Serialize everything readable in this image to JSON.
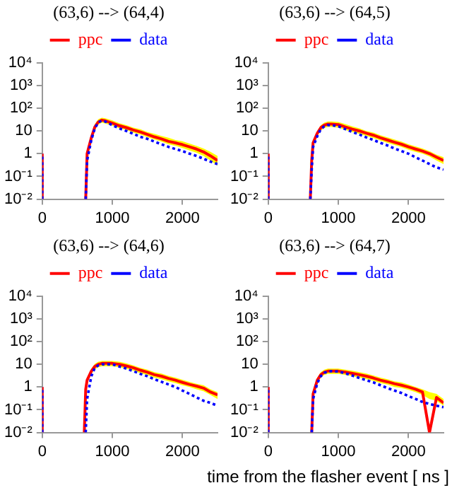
{
  "chart_data": [
    {
      "type": "line",
      "title": "(63,6) --> (64,4)",
      "legend": "top",
      "log": "y",
      "grid": false,
      "marker": "none",
      "x": [
        0,
        0,
        10,
        600,
        620,
        640,
        700,
        750,
        800,
        850,
        900,
        1000,
        1100,
        1200,
        1300,
        1400,
        1500,
        1600,
        1700,
        1800,
        1900,
        2000,
        2100,
        2200,
        2300,
        2400,
        2500
      ],
      "xlim": [
        0,
        2500
      ],
      "xticks": [
        0,
        1000,
        2000
      ],
      "ylim": [
        0.01,
        10000
      ],
      "yticks": [
        {
          "value": 0.01,
          "label": "10⁻²"
        },
        {
          "value": 0.1,
          "label": "10⁻¹"
        },
        {
          "value": 1,
          "label": "1"
        },
        {
          "value": 10,
          "label": "10"
        },
        {
          "value": 100,
          "label": "10²"
        },
        {
          "value": 1000,
          "label": "10³"
        },
        {
          "value": 10000,
          "label": "10⁴"
        }
      ],
      "series": [
        {
          "name": "ppc",
          "color": "#ff0000",
          "line_style": "solid",
          "values": [
            0.01,
            1,
            null,
            null,
            0.01,
            1,
            5,
            15,
            25,
            30,
            28,
            22,
            17,
            14,
            11,
            9,
            7,
            5.5,
            4.5,
            3.5,
            3,
            2.5,
            2,
            1.6,
            1.2,
            0.8,
            0.5
          ],
          "upper": [
            null,
            null,
            null,
            null,
            null,
            1.5,
            7,
            20,
            33,
            38,
            36,
            29,
            22,
            18,
            14,
            12,
            9,
            7.5,
            6,
            5,
            4,
            3.5,
            2.8,
            2.2,
            1.7,
            1.2,
            0.8
          ],
          "lower": [
            null,
            null,
            null,
            null,
            null,
            0.6,
            3.5,
            11,
            19,
            23,
            21,
            17,
            13,
            11,
            8.5,
            7,
            5.3,
            4.2,
            3.4,
            2.6,
            2.2,
            1.8,
            1.4,
            1.1,
            0.8,
            0.5,
            0.3
          ]
        },
        {
          "name": "data",
          "color": "#0000ff",
          "line_style": "dotted",
          "values": [
            0.01,
            1,
            null,
            null,
            0.01,
            0.5,
            4,
            13,
            24,
            28,
            26,
            18,
            13,
            10,
            7.5,
            5.5,
            4.5,
            3.4,
            2.6,
            2,
            1.6,
            1.3,
            1,
            0.8,
            0.6,
            0.45,
            0.35
          ]
        }
      ]
    },
    {
      "type": "line",
      "title": "(63,6) --> (64,5)",
      "legend": "top",
      "log": "y",
      "grid": false,
      "marker": "none",
      "x": [
        0,
        0,
        10,
        600,
        620,
        640,
        700,
        750,
        800,
        850,
        900,
        1000,
        1100,
        1200,
        1300,
        1400,
        1500,
        1600,
        1700,
        1800,
        1900,
        2000,
        2100,
        2200,
        2300,
        2400,
        2500
      ],
      "xlim": [
        0,
        2500
      ],
      "xticks": [
        0,
        1000,
        2000
      ],
      "ylim": [
        0.01,
        10000
      ],
      "yticks": [
        {
          "value": 0.01,
          "label": "10⁻²"
        },
        {
          "value": 0.1,
          "label": "10⁻¹"
        },
        {
          "value": 1,
          "label": "1"
        },
        {
          "value": 10,
          "label": "10"
        },
        {
          "value": 100,
          "label": "10²"
        },
        {
          "value": 1000,
          "label": "10³"
        },
        {
          "value": 10000,
          "label": "10⁴"
        }
      ],
      "series": [
        {
          "name": "ppc",
          "color": "#ff0000",
          "line_style": "solid",
          "values": [
            0.01,
            1,
            null,
            0.01,
            0.5,
            3,
            8,
            14,
            18,
            20,
            20,
            19,
            15,
            12,
            10,
            8,
            6.5,
            5,
            4,
            3.2,
            2.6,
            2,
            1.6,
            1.3,
            1,
            0.7,
            0.5
          ],
          "upper": [
            null,
            null,
            null,
            null,
            0.7,
            4,
            10,
            18,
            23,
            26,
            26,
            25,
            20,
            16,
            13,
            10,
            8.5,
            6.5,
            5.2,
            4.2,
            3.4,
            2.6,
            2.1,
            1.7,
            1.3,
            0.9,
            0.7
          ],
          "lower": [
            null,
            null,
            null,
            null,
            0.3,
            2.2,
            6,
            10.5,
            13.5,
            15,
            15,
            14,
            11,
            9,
            7.5,
            6,
            4.9,
            3.8,
            3,
            2.4,
            2,
            1.5,
            1.2,
            1,
            0.75,
            0.5,
            0.35
          ]
        },
        {
          "name": "data",
          "color": "#0000ff",
          "line_style": "dotted",
          "values": [
            0.01,
            1,
            null,
            0.01,
            0.2,
            2,
            6,
            12,
            16,
            18,
            18,
            16,
            12,
            9,
            7,
            5.2,
            4,
            3,
            2.3,
            1.7,
            1.3,
            1,
            0.7,
            0.5,
            0.35,
            0.25,
            0.2
          ]
        }
      ]
    },
    {
      "type": "line",
      "title": "(63,6) --> (64,6)",
      "legend": "top",
      "log": "y",
      "grid": false,
      "marker": "none",
      "x": [
        0,
        0,
        10,
        600,
        620,
        640,
        700,
        750,
        800,
        850,
        900,
        1000,
        1100,
        1200,
        1300,
        1400,
        1500,
        1600,
        1700,
        1800,
        1900,
        2000,
        2100,
        2200,
        2300,
        2400,
        2500
      ],
      "xlim": [
        0,
        2500
      ],
      "xticks": [
        0,
        1000,
        2000
      ],
      "ylim": [
        0.01,
        10000
      ],
      "yticks": [
        {
          "value": 0.01,
          "label": "10⁻²"
        },
        {
          "value": 0.1,
          "label": "10⁻¹"
        },
        {
          "value": 1,
          "label": "1"
        },
        {
          "value": 10,
          "label": "10"
        },
        {
          "value": 100,
          "label": "10²"
        },
        {
          "value": 1000,
          "label": "10³"
        },
        {
          "value": 10000,
          "label": "10⁴"
        }
      ],
      "series": [
        {
          "name": "ppc",
          "color": "#ff0000",
          "line_style": "solid",
          "values": [
            0.01,
            1,
            null,
            0.01,
            0.8,
            2,
            5,
            8,
            10,
            11,
            11,
            11,
            10,
            8.5,
            7,
            5.5,
            4.5,
            3.5,
            3,
            2.4,
            2,
            1.6,
            1.3,
            1.1,
            0.9,
            0.6,
            0.45
          ],
          "upper": [
            null,
            null,
            null,
            null,
            1,
            2.6,
            6.5,
            10.5,
            13,
            14,
            14,
            14,
            13,
            11,
            9,
            7,
            5.8,
            4.5,
            3.9,
            3.1,
            2.6,
            2.1,
            1.7,
            1.4,
            1.2,
            0.8,
            0.6
          ],
          "lower": [
            null,
            null,
            null,
            null,
            0.6,
            1.5,
            3.8,
            6,
            7.5,
            8.2,
            8.2,
            8.2,
            7.5,
            6.4,
            5.2,
            4.1,
            3.4,
            2.6,
            2.2,
            1.8,
            1.5,
            1.2,
            1,
            0.8,
            0.65,
            0.45,
            0.3
          ]
        },
        {
          "name": "data",
          "color": "#0000ff",
          "line_style": "dotted",
          "values": [
            0.01,
            1,
            null,
            null,
            0.01,
            0.3,
            3,
            7,
            9,
            10,
            10,
            10,
            8,
            6.5,
            5,
            3.8,
            3,
            2.2,
            1.7,
            1.3,
            1,
            0.7,
            0.5,
            0.35,
            0.25,
            0.2,
            0.15
          ]
        }
      ]
    },
    {
      "type": "line",
      "title": "(63,6) --> (64,7)",
      "xlabel": "time from the flasher event [ ns ]",
      "legend": "top",
      "log": "y",
      "grid": false,
      "marker": "none",
      "x": [
        0,
        0,
        10,
        600,
        620,
        640,
        700,
        750,
        800,
        850,
        900,
        1000,
        1100,
        1200,
        1300,
        1400,
        1500,
        1600,
        1700,
        1800,
        1900,
        2000,
        2100,
        2200,
        2300,
        2400,
        2500
      ],
      "xlim": [
        0,
        2500
      ],
      "xticks": [
        0,
        1000,
        2000
      ],
      "ylim": [
        0.01,
        10000
      ],
      "yticks": [
        {
          "value": 0.01,
          "label": "10⁻²"
        },
        {
          "value": 0.1,
          "label": "10⁻¹"
        },
        {
          "value": 1,
          "label": "1"
        },
        {
          "value": 10,
          "label": "10"
        },
        {
          "value": 100,
          "label": "10²"
        },
        {
          "value": 1000,
          "label": "10³"
        },
        {
          "value": 10000,
          "label": "10⁴"
        }
      ],
      "series": [
        {
          "name": "ppc",
          "color": "#ff0000",
          "line_style": "solid",
          "values": [
            0.01,
            1,
            null,
            null,
            0.01,
            0.5,
            2,
            3.5,
            4.5,
            5,
            5,
            5,
            4.5,
            4,
            3.5,
            3,
            2.5,
            2,
            1.7,
            1.4,
            1.2,
            1,
            0.8,
            0.6,
            0.01,
            0.35,
            0.2
          ],
          "upper": [
            null,
            null,
            null,
            null,
            null,
            0.7,
            2.6,
            4.5,
            5.8,
            6.5,
            6.5,
            6.5,
            5.8,
            5.2,
            4.5,
            3.9,
            3.2,
            2.6,
            2.2,
            1.8,
            1.6,
            1.3,
            1,
            0.8,
            0.6,
            0.5,
            0.3
          ],
          "lower": [
            null,
            null,
            null,
            null,
            null,
            0.35,
            1.5,
            2.6,
            3.4,
            3.8,
            3.8,
            3.8,
            3.4,
            3,
            2.6,
            2.2,
            1.9,
            1.5,
            1.3,
            1,
            0.9,
            0.75,
            0.6,
            0.45,
            0.3,
            0.25,
            0.15
          ]
        },
        {
          "name": "data",
          "color": "#0000ff",
          "line_style": "dotted",
          "values": [
            0.01,
            1,
            null,
            null,
            0.01,
            0.3,
            1.5,
            3,
            4.2,
            4.8,
            5,
            4.8,
            4,
            3.2,
            2.5,
            2,
            1.6,
            1.2,
            0.9,
            0.7,
            0.55,
            0.4,
            0.3,
            0.22,
            0.18,
            0.15,
            0.13
          ]
        }
      ]
    }
  ]
}
